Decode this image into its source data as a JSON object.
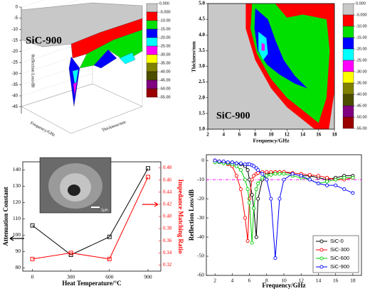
{
  "chart_data": [
    {
      "type": "surface3d",
      "title": "SiC-900",
      "zlabel": "Reflection Loss/dB",
      "xlabel": "Frequency/GHz",
      "ylabel": "Thickness/mm",
      "zlim": [
        -48,
        0
      ],
      "zticks": [
        0,
        -5,
        -10,
        -15,
        -20,
        -25,
        -30,
        -35,
        -40,
        -45
      ],
      "colorbar": {
        "ticks": [
          {
            "value": 0,
            "label": "0.000"
          },
          {
            "value": -5,
            "label": "-5.000"
          },
          {
            "value": -10,
            "label": "-10.00"
          },
          {
            "value": -15,
            "label": "-15.00"
          },
          {
            "value": -20,
            "label": "-20.00"
          },
          {
            "value": -25,
            "label": "-25.00"
          },
          {
            "value": -30,
            "label": "-30.00"
          },
          {
            "value": -35,
            "label": "-35.00"
          },
          {
            "value": -40,
            "label": "-40.00"
          },
          {
            "value": -45,
            "label": "-45.00"
          },
          {
            "value": -50,
            "label": "-50.00"
          },
          {
            "value": -55,
            "label": "-55.00"
          }
        ],
        "colors": [
          "#c8c8c8",
          "#ff0000",
          "#00e000",
          "#0000ff",
          "#00ffff",
          "#ff00ff",
          "#ffff00",
          "#808000",
          "#4d4d00",
          "#800080",
          "#990000"
        ]
      }
    },
    {
      "type": "contour",
      "title": "SiC-900",
      "xlabel": "Frequency/GHz",
      "ylabel": "Thickness/mm",
      "xlim": [
        2,
        18
      ],
      "xticks": [
        2,
        4,
        6,
        8,
        10,
        12,
        14,
        16,
        18
      ],
      "ylim": [
        1,
        5
      ],
      "yticks": [
        {
          "value": 1,
          "label": "1.0"
        },
        1.5,
        {
          "value": 2,
          "label": "2.0"
        },
        2.5,
        {
          "value": 3,
          "label": "3.0"
        },
        3.5,
        {
          "value": 4,
          "label": "4.0"
        },
        4.5,
        {
          "value": 5,
          "label": "5.0"
        }
      ],
      "colorbar": {
        "ticks": [
          {
            "value": 0,
            "label": "0.000"
          },
          {
            "value": -5,
            "label": "-5.000"
          },
          {
            "value": -10,
            "label": "-10.00"
          },
          {
            "value": -15,
            "label": "-15.00"
          },
          {
            "value": -20,
            "label": "-20.00"
          },
          {
            "value": -25,
            "label": "-25.00"
          },
          {
            "value": -30,
            "label": "-30.00"
          },
          {
            "value": -35,
            "label": "-35.00"
          },
          {
            "value": -40,
            "label": "-40.00"
          },
          {
            "value": -45,
            "label": "-45.00"
          },
          {
            "value": -50,
            "label": "-50.00"
          },
          {
            "value": -55,
            "label": "-55.00"
          }
        ],
        "colors": [
          "#c8c8c8",
          "#ff0000",
          "#00e000",
          "#0000ff",
          "#00ffff",
          "#ff00ff",
          "#ffff00",
          "#808000",
          "#4d4d00",
          "#800080",
          "#990000"
        ]
      }
    },
    {
      "type": "dual_line",
      "xlabel": "Heat Temperature/°C",
      "ylabel": "Attenuation Constant",
      "y2label": "Impedance Matching Ratio",
      "inset_label": "1μm",
      "x": [
        0,
        300,
        600,
        900
      ],
      "xlim": [
        -75,
        1000
      ],
      "xticks": [
        0,
        300,
        600,
        900
      ],
      "ylim": [
        78,
        145
      ],
      "yticks": [
        80,
        90,
        100,
        110,
        120,
        130,
        140
      ],
      "y2lim": [
        0.31,
        0.49
      ],
      "y2ticks": [
        0.32,
        0.34,
        0.36,
        0.38,
        {
          "value": 0.4,
          "label": "0.40"
        },
        0.42,
        0.44,
        0.46,
        0.48
      ],
      "series": [
        {
          "color": "#000000",
          "values": [
            106,
            88,
            99,
            141
          ]
        },
        {
          "color": "#ff0000",
          "axis": "y2",
          "values": [
            0.33,
            0.34,
            0.33,
            0.465
          ]
        }
      ]
    },
    {
      "type": "line",
      "xlabel": "Frequency/GHz",
      "ylabel": "Reflection Loss/dB",
      "x": [
        2,
        2.5,
        3,
        3.5,
        4,
        4.5,
        5,
        5.5,
        5.8,
        6,
        6.3,
        6.5,
        6.8,
        7,
        7.5,
        8,
        8.5,
        9,
        9.5,
        10,
        11,
        12,
        13,
        14,
        15,
        16,
        17,
        18
      ],
      "xlim": [
        1,
        19
      ],
      "xticks": [
        2,
        4,
        6,
        8,
        10,
        12,
        14,
        16,
        18
      ],
      "ylim": [
        -60,
        3
      ],
      "yticks": [
        0,
        -10,
        -20,
        -30,
        -40,
        -50,
        -60
      ],
      "hline": {
        "value": -10,
        "color": "#ff00ff"
      },
      "legend": "lower right",
      "series": [
        {
          "name": "SiC-0",
          "color": "#000000",
          "values": [
            0,
            -0.5,
            -0.8,
            -1,
            -1,
            -1.5,
            -2,
            -3,
            -5,
            -10,
            -18,
            -25,
            -40,
            -20,
            -10,
            -7,
            -6.5,
            -6,
            -6,
            -6,
            -7,
            -8,
            -8,
            -9,
            -10,
            -9,
            -8,
            -8
          ]
        },
        {
          "name": "SiC-300",
          "color": "#ff0000",
          "values": [
            0,
            -0.5,
            -1,
            -2,
            -3,
            -8,
            -15,
            -30,
            -42,
            -20,
            -10,
            -8,
            -7,
            -6.5,
            -6,
            -6,
            -6,
            -6,
            -6,
            -6,
            -6.5,
            -7,
            -7.5,
            -8,
            -9,
            -10,
            -10,
            -9
          ]
        },
        {
          "name": "SiC-600",
          "color": "#00cc00",
          "values": [
            -1,
            -1,
            -1.5,
            -1.5,
            -2,
            -3,
            -5,
            -10,
            -15,
            -22,
            -43,
            -25,
            -15,
            -12,
            -9,
            -8,
            -7.5,
            -7,
            -7,
            -7,
            -8,
            -9,
            -10,
            -12,
            -11,
            -10,
            -9,
            -9
          ]
        },
        {
          "name": "SiC-900",
          "color": "#0000ff",
          "values": [
            0,
            -0.5,
            -0.5,
            -1,
            -1,
            -1.5,
            -1.5,
            -2,
            -2,
            -2,
            -2.5,
            -3,
            -4,
            -5,
            -7,
            -10,
            -20,
            -51,
            -20,
            -10,
            -7,
            -8,
            -10,
            -12,
            -13,
            -13,
            -15,
            -17
          ]
        }
      ]
    }
  ]
}
